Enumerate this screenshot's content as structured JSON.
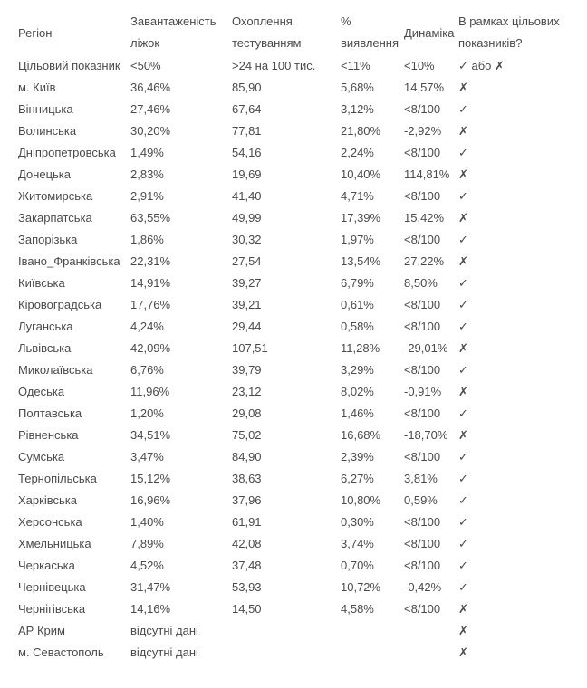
{
  "headers": {
    "region": "Регіон",
    "beds": [
      "Завантаженість",
      "ліжок"
    ],
    "testing": [
      "Охоплення",
      "тестуванням"
    ],
    "detection": [
      "%",
      "виявлення"
    ],
    "dynamics": "Динаміка",
    "target_met": [
      "В рамках цільових",
      "показників?"
    ]
  },
  "target_row": {
    "region": "Цільовий показник",
    "beds": "<50%",
    "testing": ">24 на 100 тис.",
    "detection": "<11%",
    "dynamics": "<10%",
    "target_met": "✓ або ✗"
  },
  "rows": [
    {
      "region": "м. Київ",
      "beds": "36,46%",
      "testing": "85,90",
      "detection": "5,68%",
      "dynamics": "14,57%",
      "target_met": "✗"
    },
    {
      "region": "Вінницька",
      "beds": "27,46%",
      "testing": "67,64",
      "detection": "3,12%",
      "dynamics": "<8/100",
      "target_met": "✓"
    },
    {
      "region": "Волинська",
      "beds": "30,20%",
      "testing": "77,81",
      "detection": "21,80%",
      "dynamics": "-2,92%",
      "target_met": "✗"
    },
    {
      "region": "Дніпропетровська",
      "beds": "1,49%",
      "testing": "54,16",
      "detection": "2,24%",
      "dynamics": "<8/100",
      "target_met": "✓"
    },
    {
      "region": "Донецька",
      "beds": "2,83%",
      "testing": "19,69",
      "detection": "10,40%",
      "dynamics": "114,81%",
      "target_met": "✗"
    },
    {
      "region": "Житомирська",
      "beds": "2,91%",
      "testing": "41,40",
      "detection": "4,71%",
      "dynamics": "<8/100",
      "target_met": "✓"
    },
    {
      "region": "Закарпатська",
      "beds": "63,55%",
      "testing": "49,99",
      "detection": "17,39%",
      "dynamics": "15,42%",
      "target_met": "✗"
    },
    {
      "region": "Запорізька",
      "beds": "1,86%",
      "testing": "30,32",
      "detection": "1,97%",
      "dynamics": "<8/100",
      "target_met": "✓"
    },
    {
      "region": "Івано_Франківська",
      "beds": "22,31%",
      "testing": "27,54",
      "detection": "13,54%",
      "dynamics": "27,22%",
      "target_met": "✗"
    },
    {
      "region": "Київська",
      "beds": "14,91%",
      "testing": "39,27",
      "detection": "6,79%",
      "dynamics": "8,50%",
      "target_met": "✓"
    },
    {
      "region": "Кіровоградська",
      "beds": "17,76%",
      "testing": "39,21",
      "detection": "0,61%",
      "dynamics": "<8/100",
      "target_met": "✓"
    },
    {
      "region": "Луганська",
      "beds": "4,24%",
      "testing": "29,44",
      "detection": "0,58%",
      "dynamics": "<8/100",
      "target_met": "✓"
    },
    {
      "region": "Львівська",
      "beds": "42,09%",
      "testing": "107,51",
      "detection": "11,28%",
      "dynamics": "-29,01%",
      "target_met": "✗"
    },
    {
      "region": "Миколаївська",
      "beds": "6,76%",
      "testing": "39,79",
      "detection": "3,29%",
      "dynamics": "<8/100",
      "target_met": "✓"
    },
    {
      "region": "Одеська",
      "beds": "11,96%",
      "testing": "23,12",
      "detection": "8,02%",
      "dynamics": "-0,91%",
      "target_met": "✗"
    },
    {
      "region": "Полтавська",
      "beds": "1,20%",
      "testing": "29,08",
      "detection": "1,46%",
      "dynamics": "<8/100",
      "target_met": "✓"
    },
    {
      "region": "Рівненська",
      "beds": "34,51%",
      "testing": "75,02",
      "detection": "16,68%",
      "dynamics": "-18,70%",
      "target_met": "✗"
    },
    {
      "region": "Сумська",
      "beds": "3,47%",
      "testing": "84,90",
      "detection": "2,39%",
      "dynamics": "<8/100",
      "target_met": "✓"
    },
    {
      "region": "Тернопільська",
      "beds": "15,12%",
      "testing": "38,63",
      "detection": "6,27%",
      "dynamics": "3,81%",
      "target_met": "✓"
    },
    {
      "region": "Харківська",
      "beds": "16,96%",
      "testing": "37,96",
      "detection": "10,80%",
      "dynamics": "0,59%",
      "target_met": "✓"
    },
    {
      "region": "Херсонська",
      "beds": "1,40%",
      "testing": "61,91",
      "detection": "0,30%",
      "dynamics": "<8/100",
      "target_met": "✓"
    },
    {
      "region": "Хмельницька",
      "beds": "7,89%",
      "testing": "42,08",
      "detection": "3,74%",
      "dynamics": "<8/100",
      "target_met": "✓"
    },
    {
      "region": "Черкаська",
      "beds": "4,52%",
      "testing": "37,48",
      "detection": "0,70%",
      "dynamics": "<8/100",
      "target_met": "✓"
    },
    {
      "region": "Чернівецька",
      "beds": "31,47%",
      "testing": "53,93",
      "detection": "10,72%",
      "dynamics": "-0,42%",
      "target_met": "✓"
    },
    {
      "region": "Чернігівська",
      "beds": "14,16%",
      "testing": "14,50",
      "detection": "4,58%",
      "dynamics": "<8/100",
      "target_met": "✗"
    },
    {
      "region": "АР Крим",
      "beds": "відсутні дані",
      "testing": "",
      "detection": "",
      "dynamics": "",
      "target_met": "✗"
    },
    {
      "region": "м. Севастополь",
      "beds": "відсутні дані",
      "testing": "",
      "detection": "",
      "dynamics": "",
      "target_met": "✗"
    }
  ]
}
